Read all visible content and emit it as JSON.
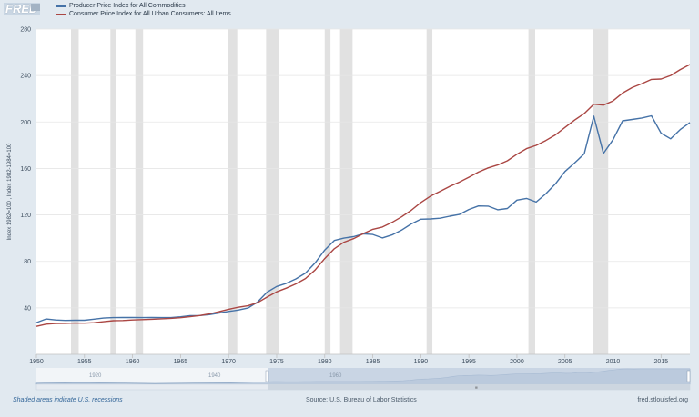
{
  "logo": {
    "text": "FRED"
  },
  "legend": [
    {
      "label": "Producer Price Index for All Commodities",
      "color": "#4572a7"
    },
    {
      "label": "Consumer Price Index for All Urban Consumers: All Items",
      "color": "#aa4643"
    }
  ],
  "footer": {
    "recessions_note": "Shaded areas indicate U.S. recessions",
    "source": "Source: U.S. Bureau of Labor Statistics",
    "site": "fred.stlouisfed.org"
  },
  "navigator": {
    "labels": [
      "1920",
      "1940",
      "1960"
    ]
  },
  "chart_data": {
    "type": "line",
    "ylabel": "Index 1982=100 , Index 1982-1984=100",
    "xlim": [
      1950,
      2018
    ],
    "ylim": [
      0,
      280
    ],
    "x_ticks": [
      1950,
      1955,
      1960,
      1965,
      1970,
      1975,
      1980,
      1985,
      1990,
      1995,
      2000,
      2005,
      2010,
      2015
    ],
    "y_ticks": [
      40,
      80,
      120,
      160,
      200,
      240,
      280
    ],
    "grid": true,
    "legend_position": "top-left",
    "recessions": [
      [
        1953.6,
        1954.4
      ],
      [
        1957.7,
        1958.3
      ],
      [
        1960.3,
        1961.1
      ],
      [
        1969.9,
        1970.9
      ],
      [
        1973.9,
        1975.2
      ],
      [
        1980.0,
        1980.6
      ],
      [
        1981.6,
        1982.9
      ],
      [
        1990.6,
        1991.2
      ],
      [
        2001.2,
        2001.9
      ],
      [
        2007.9,
        2009.5
      ]
    ],
    "series": [
      {
        "name": "Producer Price Index for All Commodities",
        "color": "#4572a7",
        "points": [
          [
            1950,
            27.3
          ],
          [
            1951,
            30.4
          ],
          [
            1952,
            29.6
          ],
          [
            1953,
            29.2
          ],
          [
            1954,
            29.3
          ],
          [
            1955,
            29.3
          ],
          [
            1956,
            30.3
          ],
          [
            1957,
            31.2
          ],
          [
            1958,
            31.6
          ],
          [
            1959,
            31.7
          ],
          [
            1960,
            31.7
          ],
          [
            1961,
            31.6
          ],
          [
            1962,
            31.7
          ],
          [
            1963,
            31.6
          ],
          [
            1964,
            31.6
          ],
          [
            1965,
            32.3
          ],
          [
            1966,
            33.3
          ],
          [
            1967,
            33.4
          ],
          [
            1968,
            34.2
          ],
          [
            1969,
            35.6
          ],
          [
            1970,
            36.9
          ],
          [
            1971,
            38.1
          ],
          [
            1972,
            39.8
          ],
          [
            1973,
            45.0
          ],
          [
            1974,
            53.5
          ],
          [
            1975,
            58.4
          ],
          [
            1976,
            61.1
          ],
          [
            1977,
            64.9
          ],
          [
            1978,
            69.9
          ],
          [
            1979,
            78.7
          ],
          [
            1980,
            89.8
          ],
          [
            1981,
            98.0
          ],
          [
            1982,
            100.0
          ],
          [
            1983,
            101.3
          ],
          [
            1984,
            103.7
          ],
          [
            1985,
            103.2
          ],
          [
            1986,
            100.2
          ],
          [
            1987,
            102.8
          ],
          [
            1988,
            106.9
          ],
          [
            1989,
            112.2
          ],
          [
            1990,
            116.3
          ],
          [
            1991,
            116.5
          ],
          [
            1992,
            117.2
          ],
          [
            1993,
            118.9
          ],
          [
            1994,
            120.4
          ],
          [
            1995,
            124.7
          ],
          [
            1996,
            127.7
          ],
          [
            1997,
            127.6
          ],
          [
            1998,
            124.4
          ],
          [
            1999,
            125.5
          ],
          [
            2000,
            132.7
          ],
          [
            2001,
            134.2
          ],
          [
            2002,
            131.1
          ],
          [
            2003,
            138.1
          ],
          [
            2004,
            146.7
          ],
          [
            2005,
            157.4
          ],
          [
            2006,
            164.7
          ],
          [
            2007,
            172.6
          ],
          [
            2008,
            205.0
          ],
          [
            2009,
            172.9
          ],
          [
            2010,
            184.7
          ],
          [
            2011,
            201.0
          ],
          [
            2012,
            202.2
          ],
          [
            2013,
            203.4
          ],
          [
            2014,
            205.3
          ],
          [
            2015,
            190.4
          ],
          [
            2016,
            185.5
          ],
          [
            2017,
            193.5
          ],
          [
            2018,
            199.5
          ]
        ]
      },
      {
        "name": "Consumer Price Index for All Urban Consumers: All Items",
        "color": "#aa4643",
        "points": [
          [
            1950,
            24.1
          ],
          [
            1951,
            26.0
          ],
          [
            1952,
            26.5
          ],
          [
            1953,
            26.7
          ],
          [
            1954,
            26.9
          ],
          [
            1955,
            26.8
          ],
          [
            1956,
            27.2
          ],
          [
            1957,
            28.1
          ],
          [
            1958,
            28.9
          ],
          [
            1959,
            29.1
          ],
          [
            1960,
            29.6
          ],
          [
            1961,
            29.9
          ],
          [
            1962,
            30.2
          ],
          [
            1963,
            30.6
          ],
          [
            1964,
            31.0
          ],
          [
            1965,
            31.5
          ],
          [
            1966,
            32.4
          ],
          [
            1967,
            33.4
          ],
          [
            1968,
            34.8
          ],
          [
            1969,
            36.7
          ],
          [
            1970,
            38.8
          ],
          [
            1971,
            40.5
          ],
          [
            1972,
            41.8
          ],
          [
            1973,
            44.4
          ],
          [
            1974,
            49.3
          ],
          [
            1975,
            53.8
          ],
          [
            1976,
            56.9
          ],
          [
            1977,
            60.6
          ],
          [
            1978,
            65.2
          ],
          [
            1979,
            72.6
          ],
          [
            1980,
            82.4
          ],
          [
            1981,
            90.9
          ],
          [
            1982,
            96.5
          ],
          [
            1983,
            99.6
          ],
          [
            1984,
            103.9
          ],
          [
            1985,
            107.6
          ],
          [
            1986,
            109.6
          ],
          [
            1987,
            113.6
          ],
          [
            1988,
            118.3
          ],
          [
            1989,
            124.0
          ],
          [
            1990,
            130.7
          ],
          [
            1991,
            136.2
          ],
          [
            1992,
            140.3
          ],
          [
            1993,
            144.5
          ],
          [
            1994,
            148.2
          ],
          [
            1995,
            152.4
          ],
          [
            1996,
            156.9
          ],
          [
            1997,
            160.5
          ],
          [
            1998,
            163.0
          ],
          [
            1999,
            166.6
          ],
          [
            2000,
            172.2
          ],
          [
            2001,
            177.1
          ],
          [
            2002,
            179.9
          ],
          [
            2003,
            184.0
          ],
          [
            2004,
            188.9
          ],
          [
            2005,
            195.3
          ],
          [
            2006,
            201.6
          ],
          [
            2007,
            207.3
          ],
          [
            2008,
            215.3
          ],
          [
            2009,
            214.5
          ],
          [
            2010,
            218.1
          ],
          [
            2011,
            224.9
          ],
          [
            2012,
            229.6
          ],
          [
            2013,
            233.0
          ],
          [
            2014,
            236.7
          ],
          [
            2015,
            237.0
          ],
          [
            2016,
            240.0
          ],
          [
            2017,
            245.1
          ],
          [
            2018,
            249.5
          ]
        ]
      }
    ]
  }
}
